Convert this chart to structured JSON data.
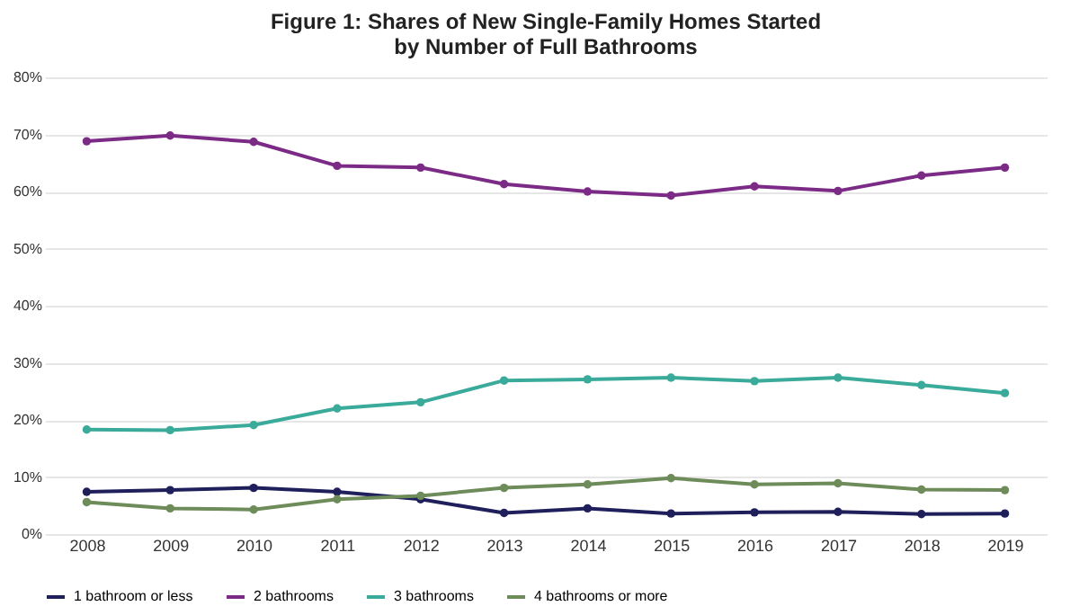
{
  "chart_data": {
    "type": "line",
    "title": "Figure 1: Shares of New Single-Family Homes Started\nby Number of Full Bathrooms",
    "categories": [
      "2008",
      "2009",
      "2010",
      "2011",
      "2012",
      "2013",
      "2014",
      "2015",
      "2016",
      "2017",
      "2018",
      "2019"
    ],
    "series": [
      {
        "name": "1 bathroom or less",
        "color": "#1f1f5c",
        "values": [
          7.4,
          7.7,
          8.1,
          7.4,
          6.1,
          3.7,
          4.5,
          3.6,
          3.8,
          3.9,
          3.5,
          3.6
        ]
      },
      {
        "name": "2 bathrooms",
        "color": "#7b2a86",
        "values": [
          68.8,
          69.8,
          68.7,
          64.5,
          64.2,
          61.3,
          60.0,
          59.3,
          60.9,
          60.1,
          62.8,
          64.2
        ]
      },
      {
        "name": "3 bathrooms",
        "color": "#3aaa9a",
        "values": [
          18.3,
          18.2,
          19.1,
          22.0,
          23.1,
          26.9,
          27.1,
          27.4,
          26.8,
          27.4,
          26.1,
          24.7
        ]
      },
      {
        "name": "4 bathrooms or more",
        "color": "#6e8b5a",
        "values": [
          5.6,
          4.5,
          4.3,
          6.1,
          6.7,
          8.1,
          8.7,
          9.8,
          8.7,
          8.9,
          7.8,
          7.7
        ]
      }
    ],
    "ylim": [
      0,
      80
    ],
    "yticks": [
      {
        "value": 0,
        "label": "0%"
      },
      {
        "value": 10,
        "label": "10%"
      },
      {
        "value": 20,
        "label": "20%"
      },
      {
        "value": 30,
        "label": "30%"
      },
      {
        "value": 40,
        "label": "40%"
      },
      {
        "value": 50,
        "label": "50%"
      },
      {
        "value": 60,
        "label": "60%"
      },
      {
        "value": 70,
        "label": "70%"
      },
      {
        "value": 80,
        "label": "80%"
      }
    ],
    "grid": "y",
    "legend": "bottom",
    "marker": "circle",
    "line_style": "solid"
  }
}
